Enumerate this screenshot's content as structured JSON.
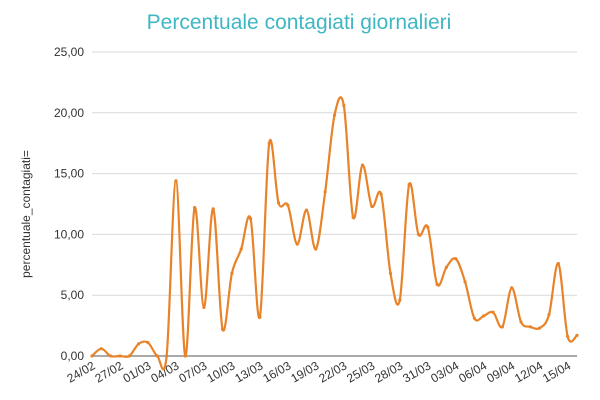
{
  "chart_data": {
    "type": "line",
    "title": "Percentuale contagiati giornalieri",
    "xlabel": "",
    "ylabel": "percentuale_contagiati=",
    "ylim": [
      0,
      25
    ],
    "yticks": [
      0,
      5,
      10,
      15,
      20,
      25
    ],
    "ytick_labels": [
      "0,00",
      "5,00",
      "10,00",
      "15,00",
      "20,00",
      "25,00"
    ],
    "x_tick_labels": [
      "24/02",
      "27/02",
      "01/03",
      "04/03",
      "07/03",
      "10/03",
      "13/03",
      "16/03",
      "19/03",
      "22/03",
      "25/03",
      "28/03",
      "31/03",
      "03/04",
      "06/04",
      "09/04",
      "12/04",
      "15/04"
    ],
    "x_tick_every": 3,
    "line_color": "#e8832a",
    "grid": true,
    "legend": "none",
    "x": [
      "24/02",
      "25/02",
      "26/02",
      "27/02",
      "28/02",
      "29/02",
      "01/03",
      "02/03",
      "03/03",
      "04/03",
      "05/03",
      "06/03",
      "07/03",
      "08/03",
      "09/03",
      "10/03",
      "11/03",
      "12/03",
      "13/03",
      "14/03",
      "15/03",
      "16/03",
      "17/03",
      "18/03",
      "19/03",
      "20/03",
      "21/03",
      "22/03",
      "23/03",
      "24/03",
      "25/03",
      "26/03",
      "27/03",
      "28/03",
      "29/03",
      "30/03",
      "31/03",
      "01/04",
      "02/04",
      "03/04",
      "04/04",
      "05/04",
      "06/04",
      "07/04",
      "08/04",
      "09/04",
      "10/04",
      "11/04",
      "12/04",
      "13/04",
      "14/04",
      "15/04",
      "16/04"
    ],
    "values": [
      0.0,
      0.6,
      0.0,
      0.0,
      0.0,
      1.0,
      1.1,
      0.0,
      0.0,
      14.4,
      0.0,
      12.2,
      4.0,
      12.1,
      2.2,
      6.8,
      8.8,
      11.3,
      3.2,
      17.5,
      12.6,
      12.4,
      9.2,
      12.0,
      8.8,
      13.5,
      19.8,
      20.6,
      11.4,
      15.7,
      12.3,
      13.3,
      6.8,
      4.6,
      14.1,
      10.0,
      10.6,
      5.9,
      7.3,
      8.0,
      6.1,
      3.1,
      3.3,
      3.6,
      2.4,
      5.6,
      2.8,
      2.4,
      2.3,
      3.4,
      7.6,
      1.6,
      1.7
    ]
  }
}
